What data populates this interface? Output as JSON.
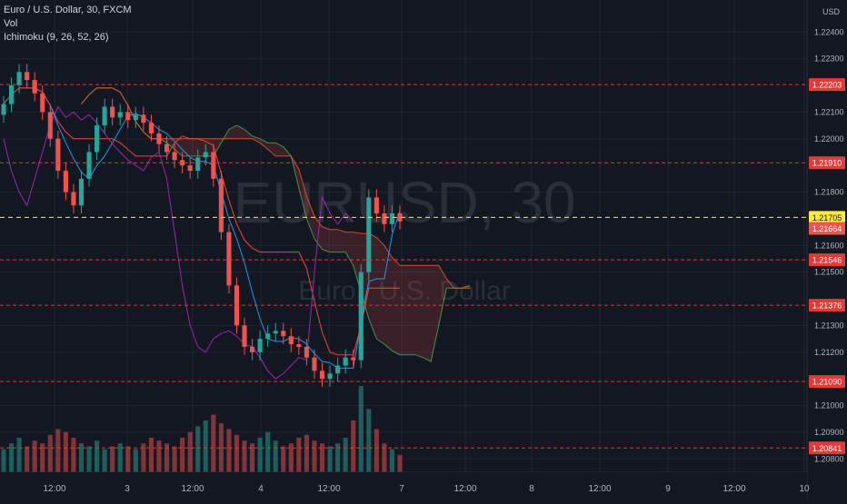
{
  "legend": {
    "symbol": "Euro / U.S. Dollar, 30, FXCM",
    "vol": "Vol",
    "ichimoku": "Ichimoku (9, 26, 52, 26)"
  },
  "watermark": {
    "big": "EURUSD, 30",
    "small": "Euro / U.S. Dollar"
  },
  "currency": "USD",
  "colors": {
    "background": "#131722",
    "up": "#26a69a",
    "down": "#ef5350",
    "tenkan": "#2196f3",
    "kijun": "#f44336",
    "lagging": "#9c27b0",
    "lead_a": "#4caf50",
    "lead_b": "#ff5722",
    "level_line": "#e53935",
    "current_line": "#ffeb3b"
  },
  "chart_data": {
    "type": "candlestick",
    "ylim": [
      1.2075,
      1.2252
    ],
    "y_ticks": [
      "1.22400",
      "1.22300",
      "1.22100",
      "1.22000",
      "1.21800",
      "1.21600",
      "1.21500",
      "1.21300",
      "1.21200",
      "1.21000",
      "1.20900",
      "1.20800"
    ],
    "x_ticks": [
      "12:00",
      "3",
      "12:00",
      "4",
      "12:00",
      "7",
      "12:00",
      "8",
      "12:00",
      "9",
      "12:00",
      "10"
    ],
    "horizontal_levels": [
      {
        "label": "1.22203",
        "value": 1.22203
      },
      {
        "label": "1.21910",
        "value": 1.2191
      },
      {
        "label": "1.21546",
        "value": 1.21546
      },
      {
        "label": "1.21376",
        "value": 1.21376
      },
      {
        "label": "1.21090",
        "value": 1.2109
      },
      {
        "label": "1.20841",
        "value": 1.20841
      }
    ],
    "current_price": {
      "label": "1.21705",
      "value": 1.21705
    },
    "last_price": {
      "label": "1.21664",
      "value": 1.21664
    },
    "close_series": [
      1.2213,
      1.222,
      1.2225,
      1.2222,
      1.2217,
      1.221,
      1.22,
      1.2188,
      1.218,
      1.2175,
      1.2185,
      1.2195,
      1.2205,
      1.2212,
      1.2208,
      1.221,
      1.2207,
      1.2209,
      1.2206,
      1.2202,
      1.2198,
      1.2195,
      1.2192,
      1.219,
      1.2188,
      1.2193,
      1.2195,
      1.2185,
      1.2165,
      1.2145,
      1.213,
      1.2122,
      1.212,
      1.2125,
      1.2127,
      1.2128,
      1.2126,
      1.2123,
      1.2122,
      1.2118,
      1.2113,
      1.211,
      1.2112,
      1.2115,
      1.2118,
      1.2117,
      1.215,
      1.2178,
      1.2172,
      1.2168,
      1.2172,
      1.2169
    ],
    "volume_series": [
      8,
      10,
      12,
      9,
      11,
      10,
      13,
      15,
      14,
      12,
      10,
      9,
      11,
      8,
      9,
      10,
      9,
      8,
      10,
      12,
      11,
      10,
      9,
      12,
      14,
      16,
      18,
      20,
      17,
      15,
      13,
      11,
      10,
      12,
      14,
      11,
      9,
      10,
      12,
      13,
      11,
      10,
      9,
      10,
      12,
      18,
      30,
      22,
      15,
      10,
      8,
      6
    ]
  }
}
